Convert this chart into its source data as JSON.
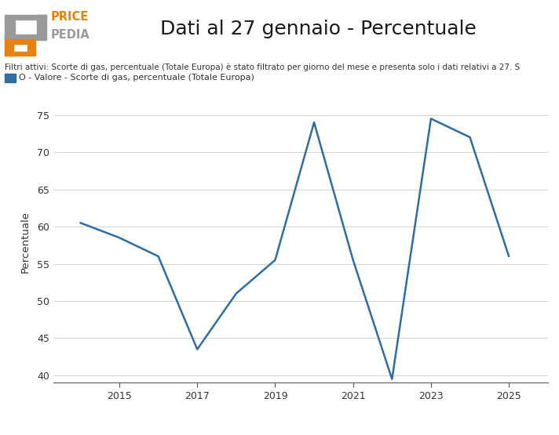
{
  "title": "Dati al 27 gennaio - Percentuale",
  "ylabel": "Percentuale",
  "filter_text": "Filtri attivi: Scorte di gas, percentuale (Totale Europa) è stato filtrato per giorno del mese e presenta solo i dati relativi a 27. S",
  "legend_text": "O - Valore - Scorte di gas, percentuale (Totale Europa)",
  "x_years": [
    2014,
    2015,
    2016,
    2017,
    2018,
    2019,
    2020,
    2021,
    2022,
    2023,
    2024,
    2025
  ],
  "values": [
    60.5,
    58.5,
    56.0,
    43.5,
    51.0,
    55.5,
    74.0,
    55.5,
    39.5,
    74.5,
    72.0,
    56.0
  ],
  "line_color": "#2e6da4",
  "ylim": [
    39,
    77
  ],
  "yticks": [
    40,
    45,
    50,
    55,
    60,
    65,
    70,
    75
  ],
  "xticks": [
    2015,
    2017,
    2019,
    2021,
    2023,
    2025
  ],
  "logo_orange": "#e8820c",
  "logo_gray": "#9a9a9a",
  "background_color": "#ffffff",
  "legend_square_color": "#2e6da4",
  "filter_fontsize": 7.5,
  "legend_fontsize": 8,
  "title_fontsize": 18
}
